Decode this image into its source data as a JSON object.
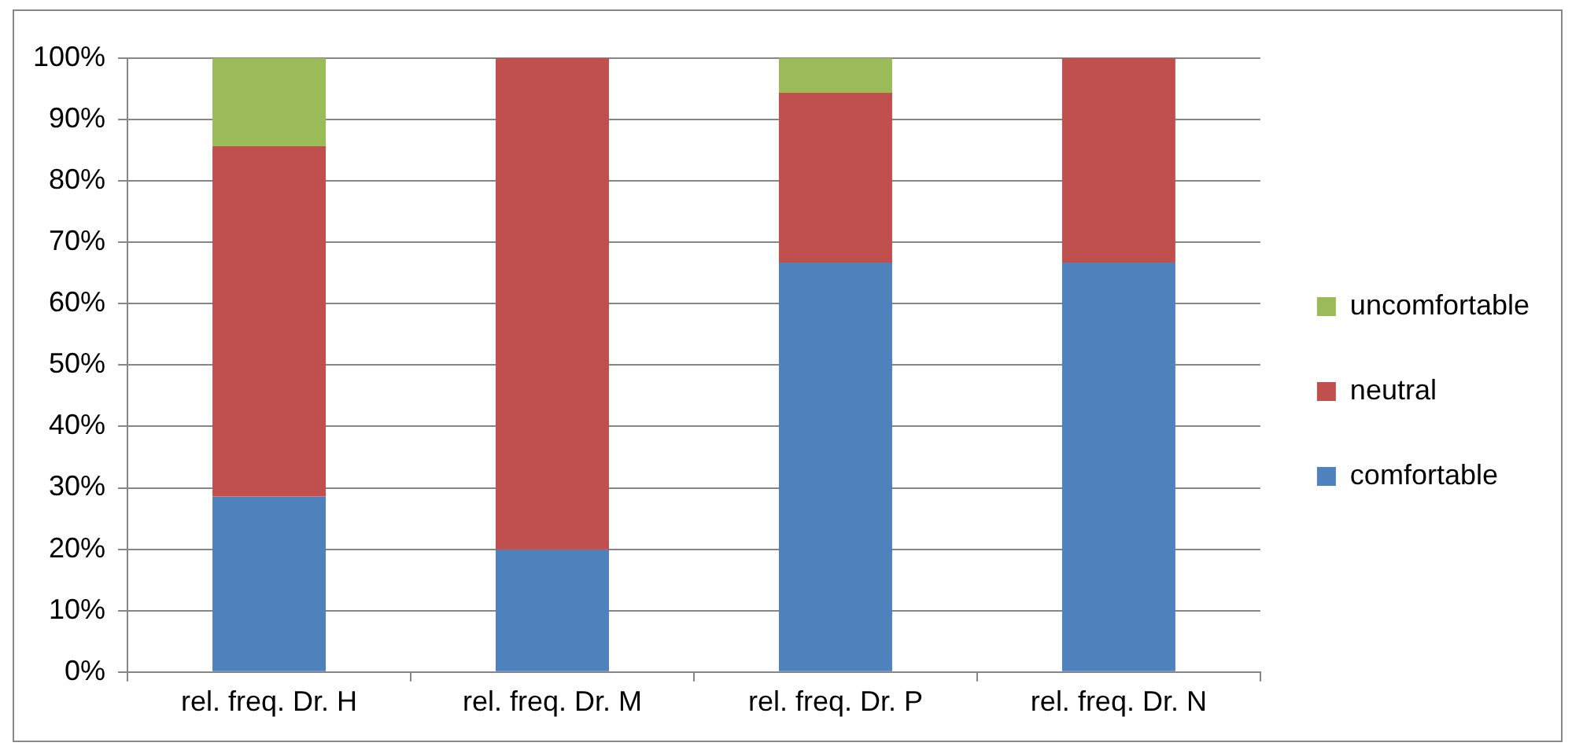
{
  "chart_data": {
    "type": "bar",
    "stacked": true,
    "categories": [
      "rel. freq. Dr. H",
      "rel. freq. Dr. M",
      "rel. freq. Dr. P",
      "rel. freq. Dr. N"
    ],
    "series": [
      {
        "name": "comfortable",
        "color": "#4f81bd",
        "values": [
          28.6,
          20,
          66.7,
          66.7
        ]
      },
      {
        "name": "neutral",
        "color": "#c0504d",
        "values": [
          57.1,
          80,
          27.7,
          33.3
        ]
      },
      {
        "name": "uncomfortable",
        "color": "#9bbb59",
        "values": [
          14.3,
          0,
          5.6,
          0
        ]
      }
    ],
    "ylim": [
      0,
      100
    ],
    "yticks": [
      {
        "value": 0,
        "label": "0%"
      },
      {
        "value": 10,
        "label": "10%"
      },
      {
        "value": 20,
        "label": "20%"
      },
      {
        "value": 30,
        "label": "30%"
      },
      {
        "value": 40,
        "label": "40%"
      },
      {
        "value": 50,
        "label": "50%"
      },
      {
        "value": 60,
        "label": "60%"
      },
      {
        "value": 70,
        "label": "70%"
      },
      {
        "value": 80,
        "label": "80%"
      },
      {
        "value": 90,
        "label": "90%"
      },
      {
        "value": 100,
        "label": "100%"
      }
    ],
    "grid": "y",
    "legend": "right"
  }
}
